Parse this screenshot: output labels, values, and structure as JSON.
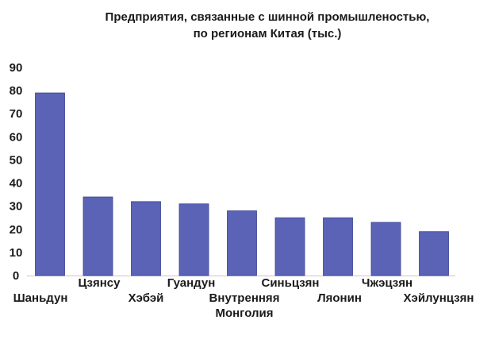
{
  "chart_data": {
    "type": "bar",
    "title": [
      "Предприятия, связанные с шинной промышленостью,",
      "по регионам Китая (тыс.)"
    ],
    "xlabel": "",
    "ylabel": "",
    "ylim": [
      0,
      90
    ],
    "yticks": [
      0,
      10,
      20,
      30,
      40,
      50,
      60,
      70,
      80,
      90
    ],
    "grid": false,
    "legend": "none",
    "categories": [
      [
        "Шаньдун"
      ],
      [
        "Цзянсу"
      ],
      [
        "Хэбэй"
      ],
      [
        "Гуандун"
      ],
      [
        "Внутренняя",
        "Монголия"
      ],
      [
        "Синьцзян"
      ],
      [
        "Ляонин"
      ],
      [
        "Чжэцзян"
      ],
      [
        "Хэйлунцзян"
      ]
    ],
    "values": [
      79,
      34,
      32,
      31,
      28,
      25,
      25,
      23,
      19
    ],
    "bar_color": "#5b63b7",
    "bar_edge_color": "#3c4390",
    "axis_color": "#c8c8c8"
  }
}
